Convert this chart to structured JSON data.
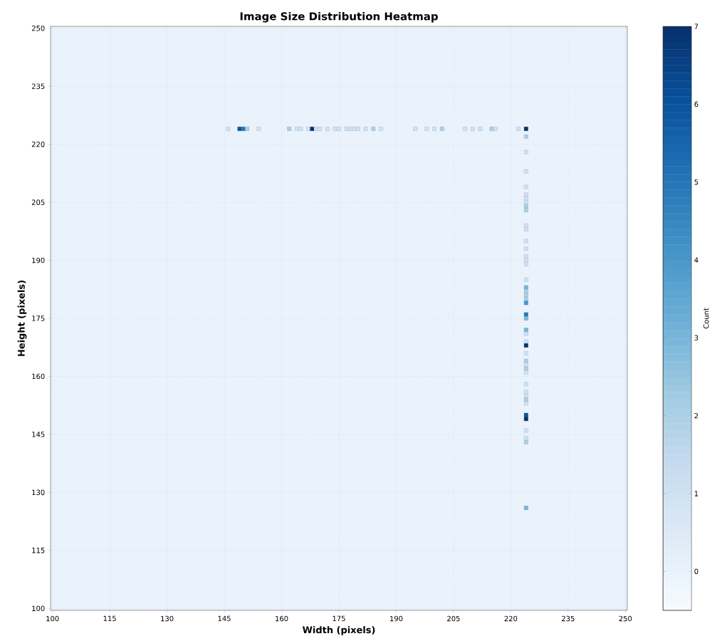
{
  "chart_data": {
    "type": "scatter",
    "title": "Image Size Distribution Heatmap",
    "xlabel": "Width (pixels)",
    "ylabel": "Height (pixels)",
    "clabel": "Count",
    "marker": "square",
    "grid": true,
    "xlim": [
      99.5,
      250.5
    ],
    "ylim": [
      99.5,
      250.5
    ],
    "xticks": [
      100,
      115,
      130,
      145,
      160,
      175,
      190,
      205,
      220,
      235,
      250
    ],
    "yticks": [
      100,
      115,
      130,
      145,
      160,
      175,
      190,
      205,
      220,
      235,
      250
    ],
    "clim": [
      -0.5,
      7
    ],
    "cticks": [
      0,
      1,
      2,
      3,
      4,
      5,
      6,
      7
    ],
    "x": [
      146,
      149,
      150,
      151,
      154,
      162,
      164,
      165,
      167,
      168,
      169,
      170,
      172,
      174,
      175,
      177,
      178,
      179,
      180,
      182,
      184,
      186,
      195,
      198,
      200,
      202,
      208,
      210,
      212,
      215,
      216,
      222,
      224,
      224,
      224,
      224,
      224,
      224,
      224,
      224,
      224,
      224,
      224,
      224,
      224,
      224,
      224,
      224,
      224,
      224,
      224,
      224,
      224,
      224,
      224,
      224,
      224,
      224,
      224,
      224,
      224,
      224,
      224,
      224,
      224,
      224,
      224,
      224,
      224,
      224,
      224,
      224,
      224,
      224,
      224,
      224,
      224
    ],
    "values": [
      224,
      224,
      224,
      224,
      224,
      224,
      224,
      224,
      224,
      224,
      224,
      224,
      224,
      224,
      224,
      224,
      224,
      224,
      224,
      224,
      224,
      224,
      224,
      224,
      224,
      224,
      224,
      224,
      224,
      224,
      224,
      224,
      224,
      222,
      218,
      213,
      209,
      207,
      206,
      205,
      204,
      203,
      199,
      198,
      195,
      193,
      191,
      190,
      189,
      185,
      183,
      182,
      181,
      180,
      179,
      176,
      175,
      172,
      171,
      169,
      168,
      166,
      164,
      163,
      162,
      161,
      158,
      156,
      155,
      154,
      153,
      150,
      149,
      146,
      144,
      143,
      126
    ],
    "cvalues": [
      1,
      6,
      5,
      2,
      1,
      2,
      1,
      1,
      1,
      7,
      1,
      1,
      1,
      1,
      1,
      1,
      1,
      1,
      1,
      1,
      2,
      1,
      1,
      1,
      1,
      2,
      1,
      1,
      1,
      2,
      1,
      1,
      7,
      2,
      1,
      1,
      1,
      1,
      1,
      1,
      2,
      2,
      1,
      1,
      1,
      1,
      1,
      1,
      1,
      1,
      3,
      2,
      2,
      2,
      4,
      5,
      3,
      3,
      1,
      1,
      7,
      1,
      2,
      1,
      2,
      1,
      1,
      1,
      1,
      2,
      1,
      6,
      7,
      1,
      1,
      2,
      3
    ]
  }
}
